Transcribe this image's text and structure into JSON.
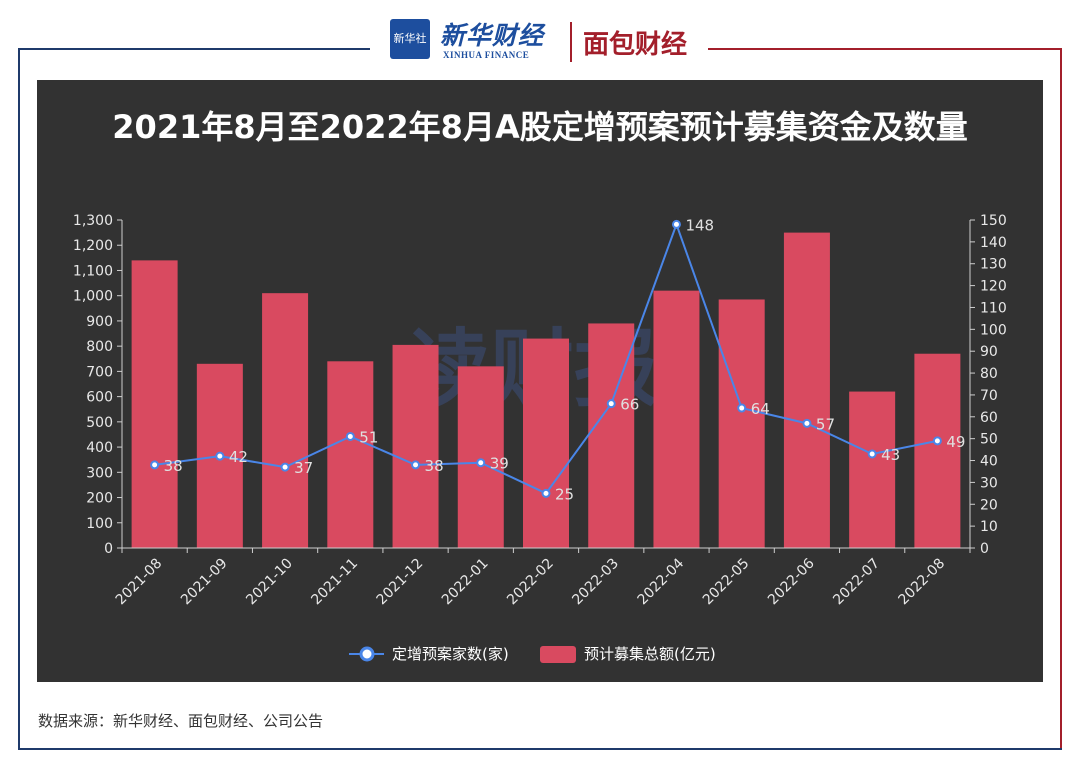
{
  "header": {
    "xinhua_box": "新华社",
    "xinhua_name": "新华财经",
    "xinhua_sub": "XINHUA FINANCE",
    "mianbao_name": "面包财经"
  },
  "watermark": "读财报",
  "colors": {
    "panel_bg": "#323232",
    "bar": "#d94a60",
    "line": "#4a86e8",
    "frame_blue": "#1f3a6b",
    "frame_red": "#a31f2b"
  },
  "chart_data": {
    "type": "bar",
    "title": "2021年8月至2022年8月A股定增预案预计募集资金及数量",
    "categories": [
      "2021-08",
      "2021-09",
      "2021-10",
      "2021-11",
      "2021-12",
      "2022-01",
      "2022-02",
      "2022-03",
      "2022-04",
      "2022-05",
      "2022-06",
      "2022-07",
      "2022-08"
    ],
    "series": [
      {
        "name": "预计募集总额(亿元)",
        "type": "bar",
        "axis": "left",
        "values": [
          1140,
          730,
          1010,
          740,
          805,
          720,
          830,
          890,
          1020,
          985,
          1250,
          620,
          770
        ]
      },
      {
        "name": "定增预案家数(家)",
        "type": "line",
        "axis": "right",
        "values": [
          38,
          42,
          37,
          51,
          38,
          39,
          25,
          66,
          148,
          64,
          57,
          43,
          49
        ]
      }
    ],
    "left_axis": {
      "min": 0,
      "max": 1300,
      "step": 100,
      "tick_labels": [
        "0",
        "100",
        "200",
        "300",
        "400",
        "500",
        "600",
        "700",
        "800",
        "900",
        "1,000",
        "1,100",
        "1,200",
        "1,300"
      ]
    },
    "right_axis": {
      "min": 0,
      "max": 150,
      "step": 10,
      "tick_labels": [
        "0",
        "10",
        "20",
        "30",
        "40",
        "50",
        "60",
        "70",
        "80",
        "90",
        "100",
        "110",
        "120",
        "130",
        "140",
        "150"
      ]
    },
    "legend": [
      "定增预案家数(家)",
      "预计募集总额(亿元)"
    ],
    "legend_position": "bottom"
  },
  "footer": {
    "source": "数据来源：新华财经、面包财经、公司公告"
  }
}
